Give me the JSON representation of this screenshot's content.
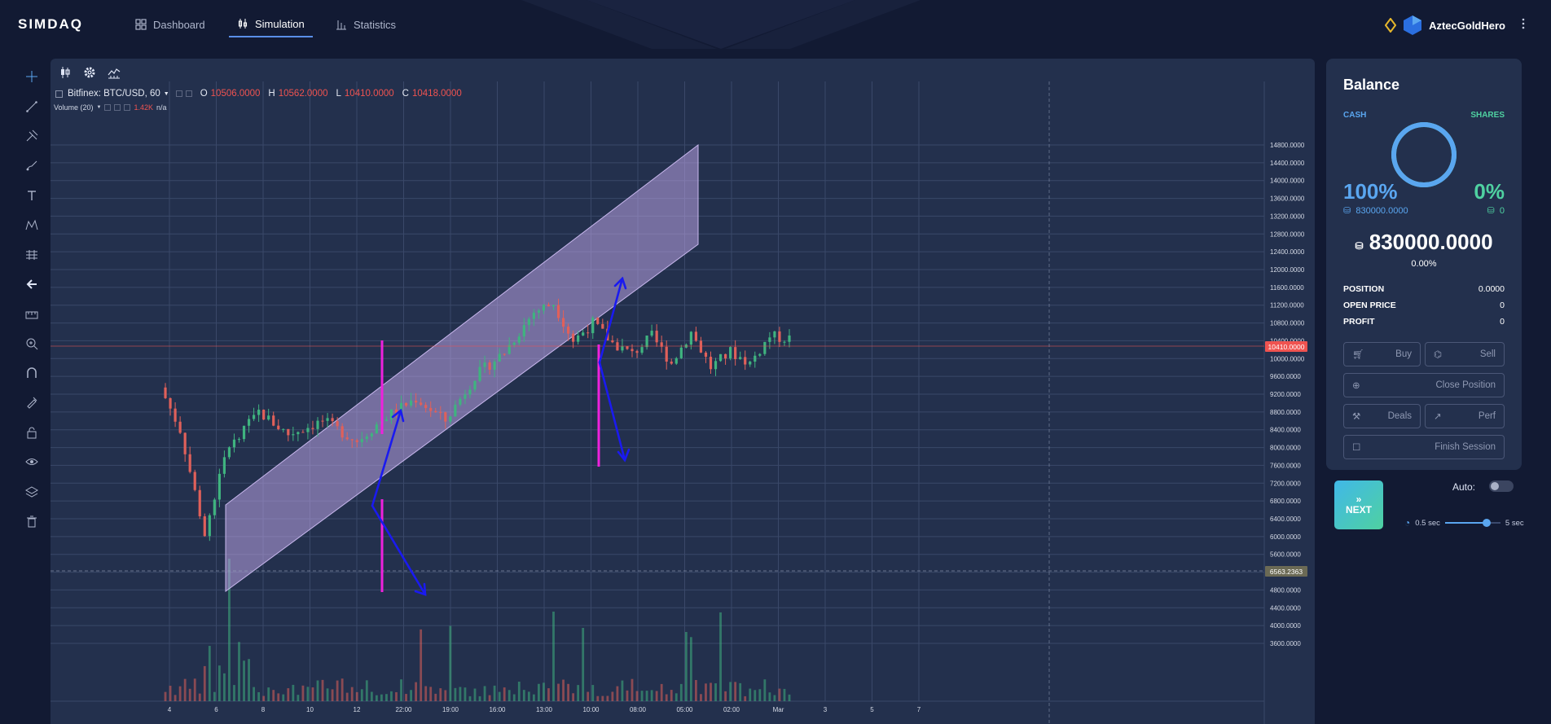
{
  "app": {
    "logo": "SIMDAQ"
  },
  "nav": [
    {
      "label": "Dashboard",
      "icon": "dashboard-grid-icon",
      "active": false
    },
    {
      "label": "Simulation",
      "icon": "candles-icon",
      "active": true
    },
    {
      "label": "Statistics",
      "icon": "bar-chart-icon",
      "active": false
    }
  ],
  "user": {
    "name": "AztecGoldHero"
  },
  "left_tools": [
    "crosshair-icon",
    "trend-line-icon",
    "pitchfork-icon",
    "brush-icon",
    "text-icon",
    "pattern-icon",
    "forecast-icon",
    "back-arrow-icon",
    "ruler-icon",
    "zoom-in-icon",
    "magnet-icon",
    "lock-draw-icon",
    "lock-icon",
    "eye-icon",
    "layers-icon",
    "trash-icon"
  ],
  "chart_tools": [
    "candlestick-type-icon",
    "settings-icon",
    "indicators-icon"
  ],
  "legend": {
    "symbol": "Bitfinex: BTC/USD, 60",
    "o_key": "O",
    "o": "10506.0000",
    "h_key": "H",
    "h": "10562.0000",
    "l_key": "L",
    "l": "10410.0000",
    "c_key": "C",
    "c": "10418.0000",
    "volume_label": "Volume (20)",
    "volume_value": "1.42K",
    "volume_na": "n/a"
  },
  "chart_data": {
    "type": "candlestick",
    "symbol": "Bitfinex: BTC/USD, 60",
    "y_ticks": [
      "14800.0000",
      "14400.0000",
      "14000.0000",
      "13600.0000",
      "13200.0000",
      "12800.0000",
      "12400.0000",
      "12000.0000",
      "11600.0000",
      "11200.0000",
      "10800.0000",
      "10400.0000",
      "10000.0000",
      "9600.0000",
      "9200.0000",
      "8800.0000",
      "8400.0000",
      "8000.0000",
      "7600.0000",
      "7200.0000",
      "6800.0000",
      "6400.0000",
      "6000.0000",
      "5600.0000",
      "5200.0000",
      "4800.0000",
      "4400.0000",
      "4000.0000",
      "3600.0000"
    ],
    "x_ticks": [
      "4",
      "6",
      "8",
      "10",
      "12",
      "22:00",
      "19:00",
      "16:00",
      "13:00",
      "10:00",
      "08:00",
      "05:00",
      "02:00",
      "Mar",
      "3",
      "5",
      "7"
    ],
    "current_price_label": "10410.0000",
    "crosshair_price_label": "6563.2363",
    "close_path": [
      [
        0,
        9350
      ],
      [
        4,
        8400
      ],
      [
        7,
        7000
      ],
      [
        9,
        6050
      ],
      [
        13,
        7800
      ],
      [
        20,
        8800
      ],
      [
        26,
        8300
      ],
      [
        33,
        8600
      ],
      [
        40,
        8150
      ],
      [
        46,
        8700
      ],
      [
        52,
        9100
      ],
      [
        58,
        8600
      ],
      [
        64,
        9600
      ],
      [
        70,
        10150
      ],
      [
        76,
        11050
      ],
      [
        80,
        11250
      ],
      [
        84,
        10400
      ],
      [
        88,
        10800
      ],
      [
        92,
        10350
      ],
      [
        96,
        10100
      ],
      [
        100,
        10500
      ],
      [
        104,
        9900
      ],
      [
        108,
        10600
      ],
      [
        112,
        9800
      ],
      [
        116,
        10150
      ],
      [
        120,
        9900
      ],
      [
        124,
        10500
      ],
      [
        128,
        10450
      ]
    ],
    "annotations": [
      "rising channel",
      "blue arrows",
      "magenta vertical lines"
    ]
  },
  "balance": {
    "title": "Balance",
    "cash_label": "CASH",
    "shares_label": "SHARES",
    "cash_pct": "100%",
    "shares_pct": "0%",
    "cash_value": "830000.0000",
    "shares_value": "0",
    "total": "830000.0000",
    "total_pct": "0.00%",
    "position_label": "POSITION",
    "position": "0.0000",
    "open_price_label": "OPEN PRICE",
    "open_price": "0",
    "profit_label": "PROFIT",
    "profit": "0",
    "cash_fraction": 1.0
  },
  "buttons": {
    "buy": "Buy",
    "sell": "Sell",
    "close_position": "Close Position",
    "deals": "Deals",
    "perf": "Perf",
    "finish_session": "Finish Session"
  },
  "controls": {
    "next": "NEXT",
    "auto_label": "Auto:",
    "auto_on": false,
    "speed_min": "0.5 sec",
    "speed_max": "5 sec",
    "speed_fraction": 0.75
  },
  "colors": {
    "accent": "#5aa6f0",
    "green": "#4fd1a1",
    "red": "#ef5350",
    "panel": "#23304d",
    "bg": "#121a33"
  }
}
